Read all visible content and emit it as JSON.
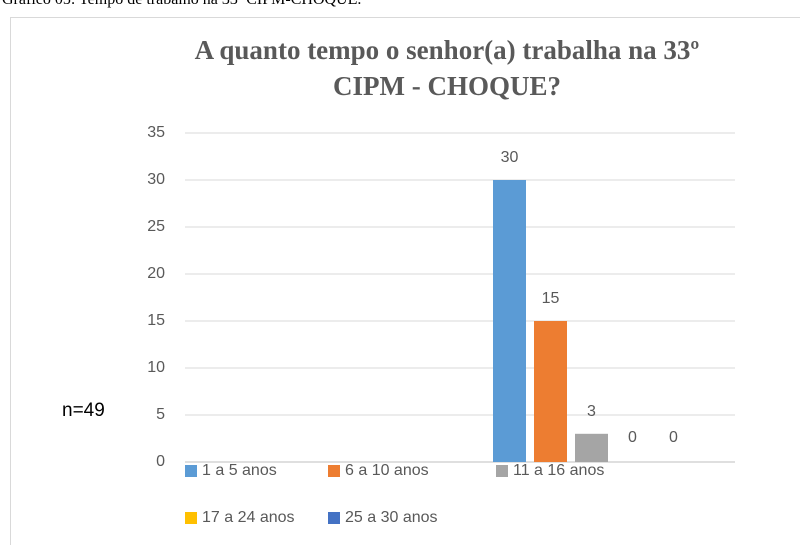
{
  "caption": "Gráfico 05: Tempo de trabalho na 33ª CIPM-CHOQUE.",
  "chart_data": {
    "type": "bar",
    "title": "A quanto tempo o senhor(a) trabalha na 33º CIPM - CHOQUE?",
    "annotation": "n=49",
    "categories": [
      null
    ],
    "series": [
      {
        "name": "1 a 5 anos",
        "color": "#5b9bd5",
        "values": [
          30
        ]
      },
      {
        "name": "6 a 10 anos",
        "color": "#ed7d31",
        "values": [
          15
        ]
      },
      {
        "name": "11 a 16 anos",
        "color": "#a5a5a5",
        "values": [
          3
        ]
      },
      {
        "name": "17 a 24 anos",
        "color": "#ffc000",
        "values": [
          0
        ]
      },
      {
        "name": "25 a 30 anos",
        "color": "#4472c4",
        "values": [
          0
        ]
      }
    ],
    "ylim": [
      0,
      35
    ],
    "yticks": [
      0,
      5,
      10,
      15,
      20,
      25,
      30,
      35
    ],
    "grid": true,
    "legend": "bottom"
  }
}
